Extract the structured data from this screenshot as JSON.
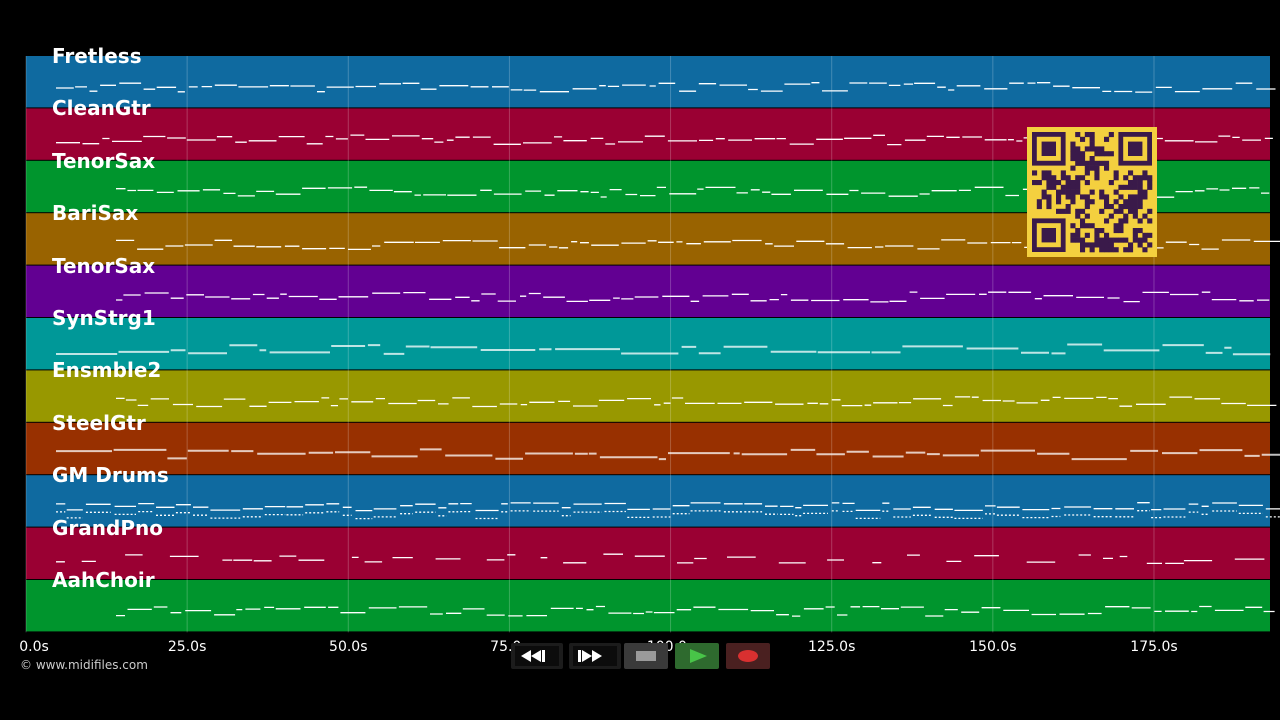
{
  "tracks": [
    {
      "label": "Fretless",
      "color": "#0f6aa0"
    },
    {
      "label": "CleanGtr",
      "color": "#9a0033"
    },
    {
      "label": "TenorSax",
      "color": "#00952d"
    },
    {
      "label": "BariSax",
      "color": "#996300"
    },
    {
      "label": "TenorSax",
      "color": "#620092"
    },
    {
      "label": "SynStrg1",
      "color": "#009898"
    },
    {
      "label": "Ensmble2",
      "color": "#989800"
    },
    {
      "label": "SteelGtr",
      "color": "#983000"
    },
    {
      "label": "GM Drums",
      "color": "#0f6aa0"
    },
    {
      "label": "GrandPno",
      "color": "#9a0033"
    },
    {
      "label": "AahChoir",
      "color": "#00952d"
    }
  ],
  "time_axis": {
    "max_seconds": 193,
    "ticks": [
      {
        "value": 0,
        "label": "0.0s"
      },
      {
        "value": 25,
        "label": "25.0s"
      },
      {
        "value": 50,
        "label": "50.0s"
      },
      {
        "value": 75,
        "label": "75.0s"
      },
      {
        "value": 100,
        "label": "100.0s"
      },
      {
        "value": 125,
        "label": "125.0s"
      },
      {
        "value": 150,
        "label": "150.0s"
      },
      {
        "value": 175,
        "label": "175.0s"
      }
    ]
  },
  "copyright": "© www.midifiles.com",
  "transport": {
    "rewind_icon": "rewind-icon",
    "fast_forward_icon": "fast-forward-icon",
    "stop_icon": "stop-icon",
    "play_icon": "play-icon",
    "record_icon": "record-icon"
  },
  "qr_colors": {
    "background": "#f4d03f",
    "foreground": "#3a1a4a"
  }
}
